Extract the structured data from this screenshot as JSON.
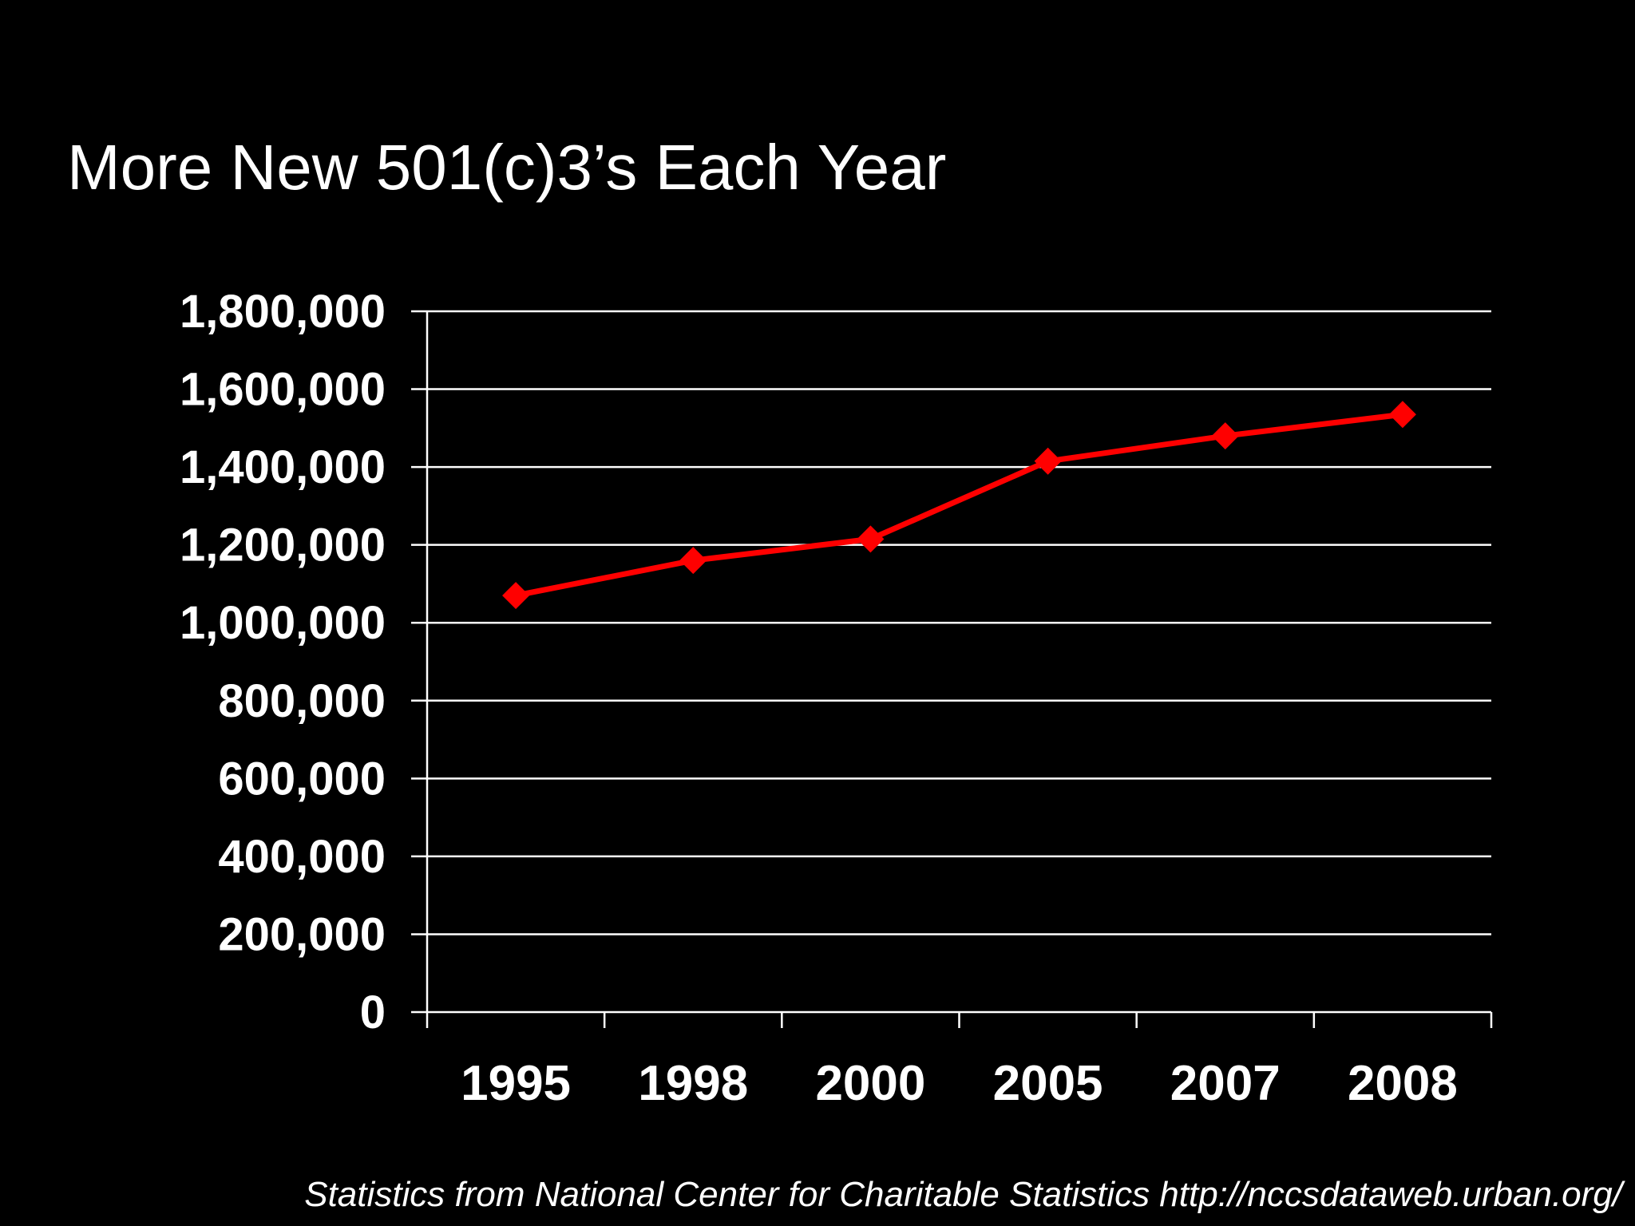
{
  "slide": {
    "title": "More New 501(c)3’s Each Year",
    "source_note": "Statistics from National Center for Charitable Statistics http://nccsdataweb.urban.org/"
  },
  "colors": {
    "background": "#000000",
    "text": "#ffffff",
    "series": "#ff0000",
    "grid": "#ffffff"
  },
  "chart_data": {
    "type": "line",
    "title": "More New 501(c)3’s Each Year",
    "xlabel": "",
    "ylabel": "",
    "categories": [
      "1995",
      "1998",
      "2000",
      "2005",
      "2007",
      "2008"
    ],
    "series": [
      {
        "name": "New 501(c)3's",
        "marker": "diamond",
        "values": [
          1070000,
          1160000,
          1215000,
          1415000,
          1480000,
          1535000
        ]
      }
    ],
    "ylim": [
      0,
      1800000
    ],
    "yticks": [
      0,
      200000,
      400000,
      600000,
      800000,
      1000000,
      1200000,
      1400000,
      1600000,
      1800000
    ],
    "ytick_labels": [
      "0",
      "200,000",
      "400,000",
      "600,000",
      "800,000",
      "1,000,000",
      "1,200,000",
      "1,400,000",
      "1,600,000",
      "1,800,000"
    ],
    "grid": true,
    "legend": "none"
  }
}
